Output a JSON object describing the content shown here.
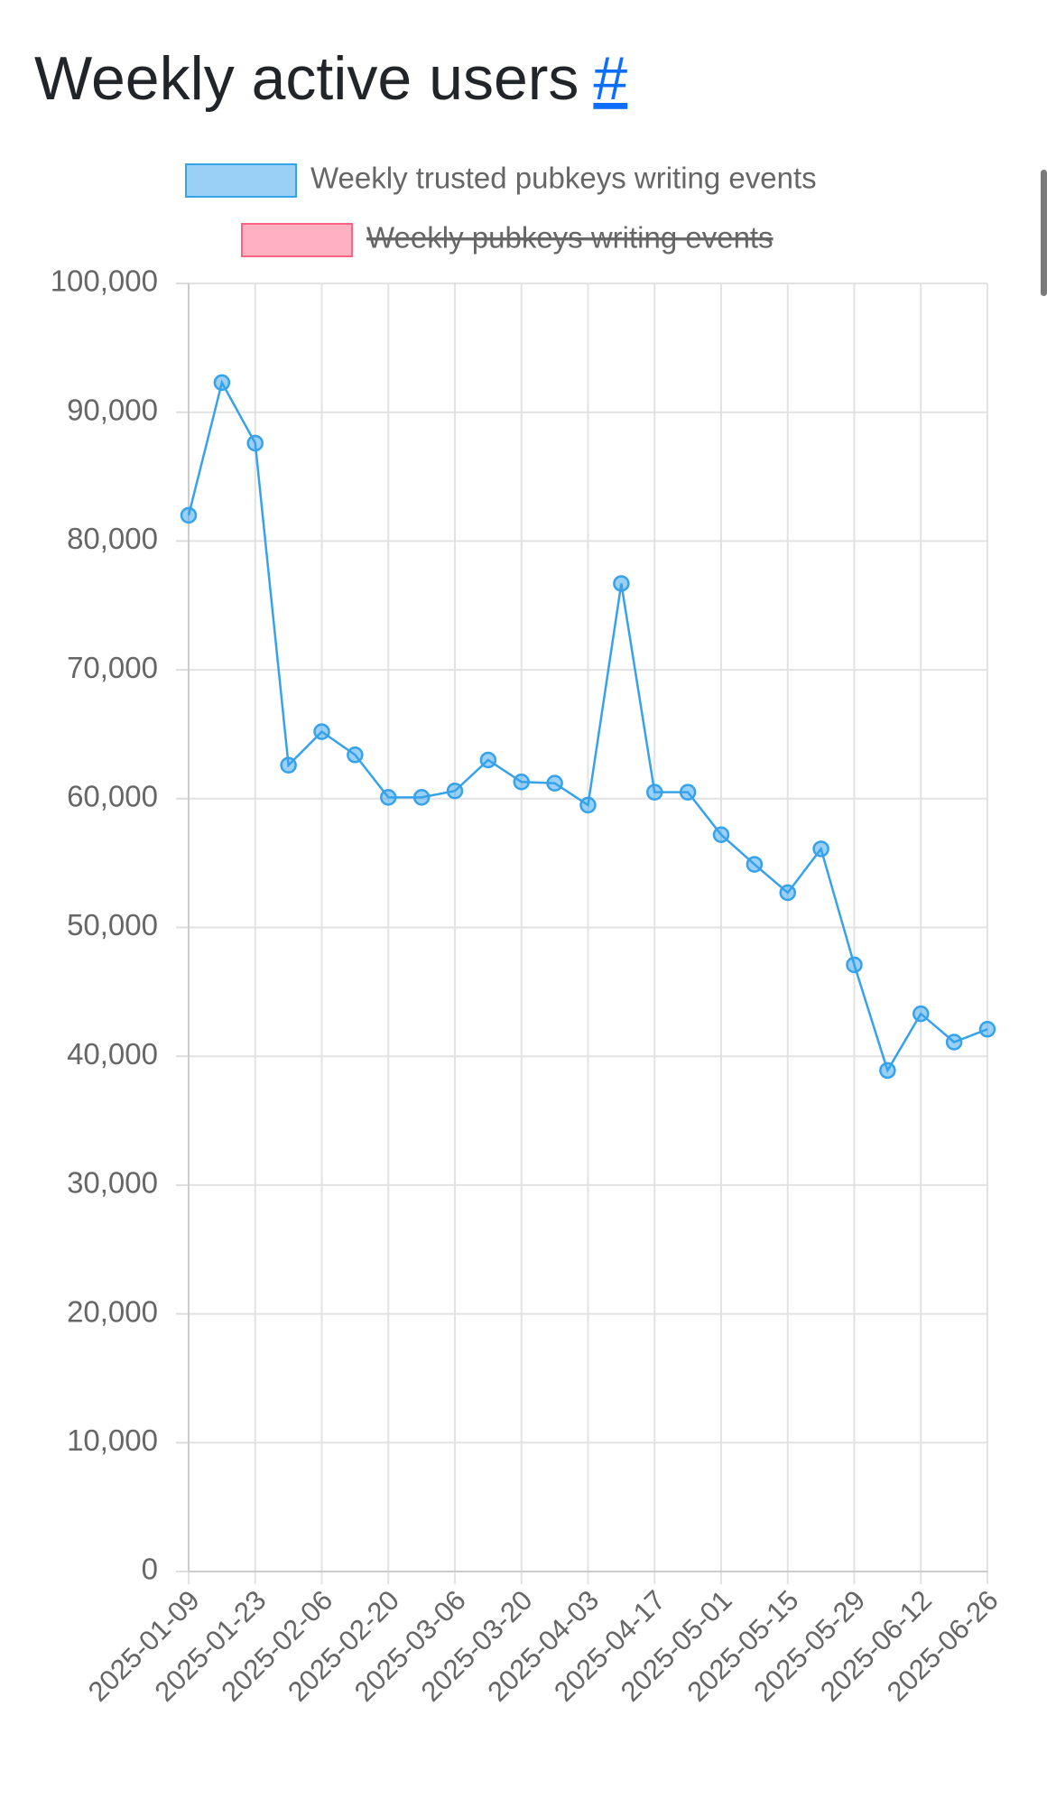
{
  "chart_data": {
    "type": "line",
    "title": "Weekly active users",
    "title_link": "#",
    "categories": [
      "2025-01-09",
      null,
      "2025-01-23",
      null,
      "2025-02-06",
      null,
      "2025-02-20",
      null,
      "2025-03-06",
      null,
      "2025-03-20",
      null,
      "2025-04-03",
      null,
      "2025-04-17",
      null,
      "2025-05-01",
      null,
      "2025-05-15",
      null,
      "2025-05-29",
      null,
      "2025-06-12",
      null,
      "2025-06-26"
    ],
    "series": [
      {
        "name": "Weekly trusted pubkeys writing events",
        "color": "#36a2eb",
        "hidden": false,
        "values": [
          82000,
          92300,
          87600,
          62600,
          65200,
          63400,
          60100,
          60100,
          60600,
          63000,
          61300,
          61200,
          59500,
          76700,
          60500,
          60500,
          57200,
          54900,
          52700,
          56100,
          47100,
          38900,
          43300,
          41100,
          42100
        ]
      },
      {
        "name": "Weekly pubkeys writing events",
        "color": "#ff6384",
        "hidden": true,
        "values": [
          null,
          null,
          null,
          null,
          null,
          null,
          null,
          null,
          null,
          null,
          null,
          null,
          null,
          null,
          null,
          null,
          null,
          null,
          null,
          null,
          null,
          null,
          null,
          null,
          null
        ]
      }
    ],
    "ylim": [
      0,
      100000
    ],
    "yticks": [
      0,
      {
        "value": 10000,
        "label": "10,000"
      },
      {
        "value": 20000,
        "label": "20,000"
      },
      {
        "value": 30000,
        "label": "30,000"
      },
      {
        "value": 40000,
        "label": "40,000"
      },
      {
        "value": 50000,
        "label": "50,000"
      },
      {
        "value": 60000,
        "label": "60,000"
      },
      {
        "value": 70000,
        "label": "70,000"
      },
      {
        "value": 80000,
        "label": "80,000"
      },
      {
        "value": 90000,
        "label": "90,000"
      },
      {
        "value": 100000,
        "label": "100,000"
      }
    ],
    "grid": true,
    "legend": "top"
  }
}
